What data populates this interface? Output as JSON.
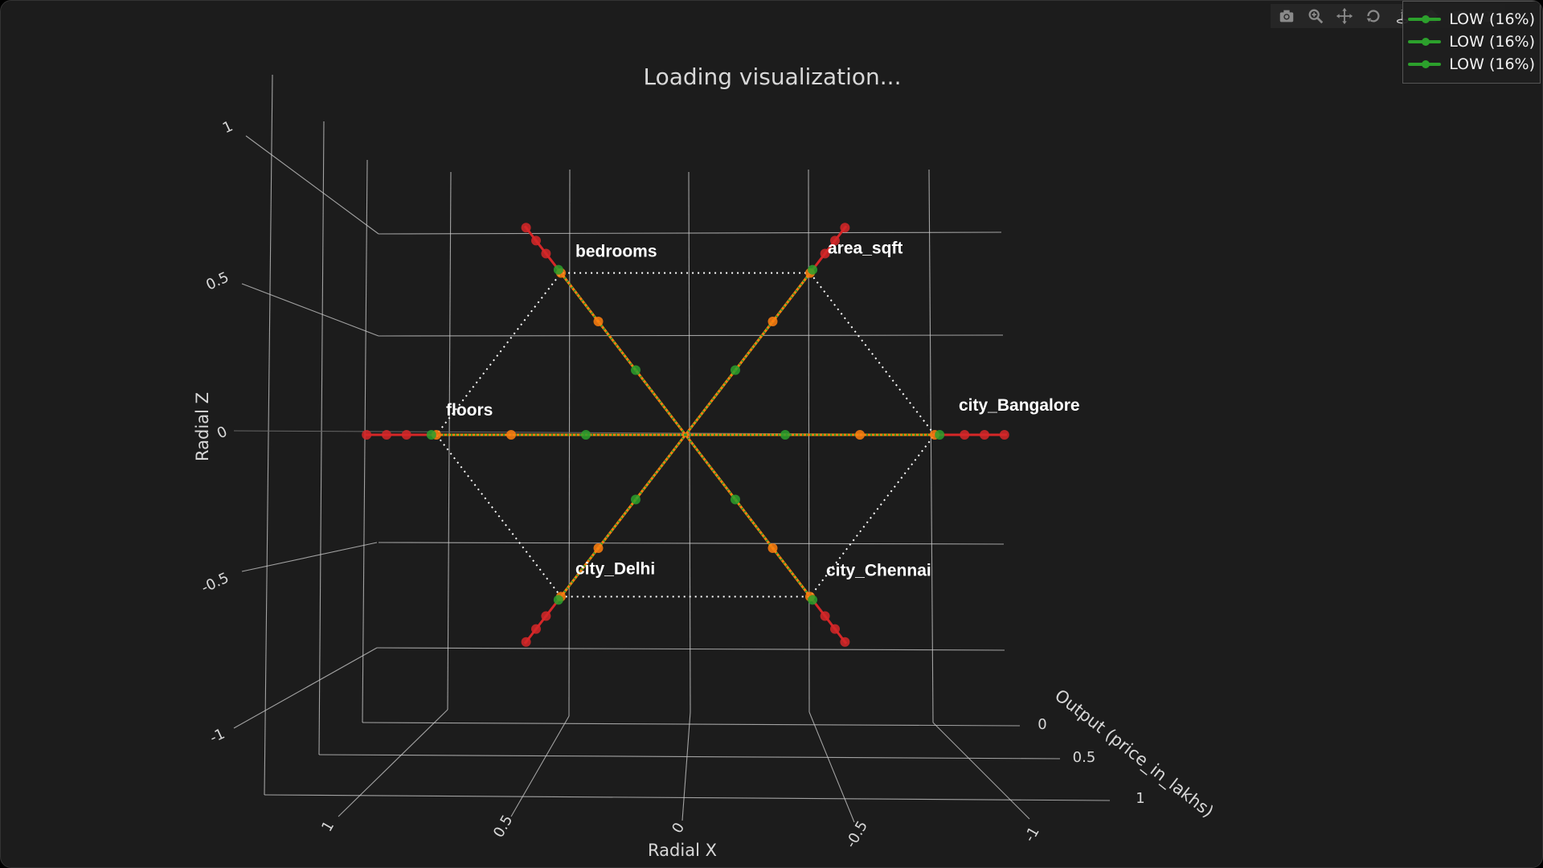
{
  "title": "Loading visualization...",
  "modebar": {
    "buttons": [
      {
        "name": "camera-icon"
      },
      {
        "name": "zoom-icon"
      },
      {
        "name": "pan-icon"
      },
      {
        "name": "orbit-icon"
      },
      {
        "name": "turntable-icon"
      },
      {
        "name": "home-icon"
      },
      {
        "name": "hover-icon"
      },
      {
        "name": "spike-icon"
      }
    ]
  },
  "legend": {
    "items": [
      {
        "label": "LOW (16%)",
        "color": "#2ca02c"
      },
      {
        "label": "LOW (16%)",
        "color": "#2ca02c"
      },
      {
        "label": "LOW (16%)",
        "color": "#2ca02c"
      }
    ]
  },
  "colors": {
    "background": "#1c1c1c",
    "grid": "#cfcfcf",
    "high": "#d62728",
    "medium": "#ff7f0e",
    "low": "#2ca02c",
    "hexagon": "#ffffff",
    "label": "#ffffff"
  },
  "chart_data": {
    "type": "scatter",
    "subtype": "3d-radial-scatter-with-lines",
    "title": "Loading visualization...",
    "axes": {
      "x": {
        "label": "Radial X",
        "ticks": [
          "1",
          "0.5",
          "0",
          "-0.5",
          "-1"
        ],
        "range": [
          1,
          -1
        ]
      },
      "z": {
        "label": "Radial Z",
        "ticks": [
          "1",
          "0.5",
          "0",
          "-0.5",
          "-1"
        ],
        "range": [
          -1,
          1
        ]
      },
      "y": {
        "label": "Output (price_in_lakhs)",
        "ticks": [
          "0",
          "0.5",
          "1"
        ],
        "range": [
          0,
          1
        ]
      }
    },
    "grid": true,
    "legend_position": "top-right",
    "features": [
      {
        "name": "bedrooms",
        "angle_deg": 120
      },
      {
        "name": "area_sqft",
        "angle_deg": 60
      },
      {
        "name": "city_Bangalore",
        "angle_deg": 0
      },
      {
        "name": "city_Chennai",
        "angle_deg": -60
      },
      {
        "name": "city_Delhi",
        "angle_deg": -120
      },
      {
        "name": "floors",
        "angle_deg": 180
      }
    ],
    "series": [
      {
        "name": "LOW (16%)",
        "color": "#2ca02c"
      },
      {
        "name": "LOW (16%)",
        "color": "#2ca02c"
      },
      {
        "name": "LOW (16%)",
        "color": "#2ca02c"
      }
    ]
  }
}
